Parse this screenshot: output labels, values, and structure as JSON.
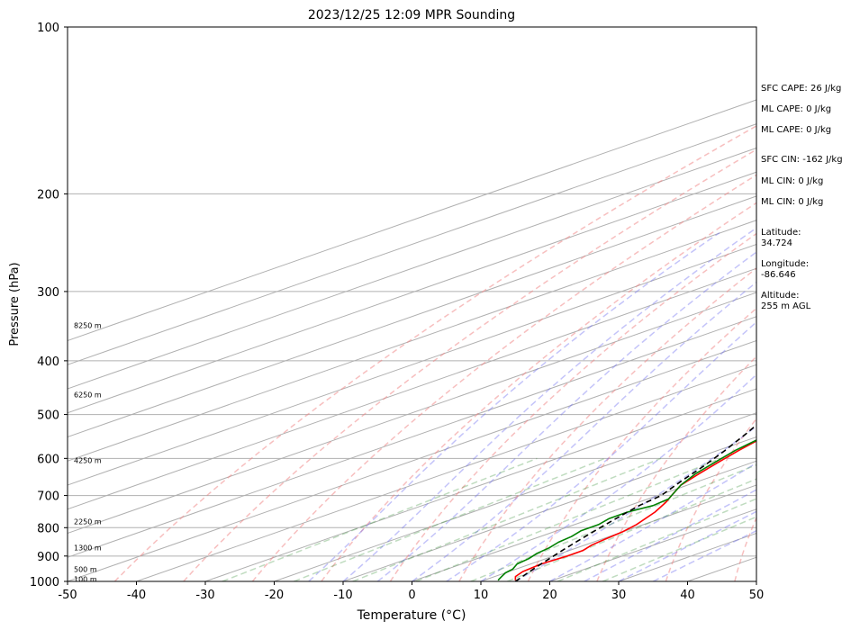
{
  "chart_data": {
    "type": "line",
    "title": "2023/12/25 12:09 MPR Sounding",
    "xlabel": "Temperature (°C)",
    "ylabel": "Pressure (hPa)",
    "xlim": [
      -50,
      50
    ],
    "ylim": [
      1000,
      100
    ],
    "y_scale": "log",
    "x_ticks": [
      -50,
      -40,
      -30,
      -20,
      -10,
      0,
      10,
      20,
      30,
      40,
      50
    ],
    "y_ticks": [
      100,
      200,
      300,
      400,
      500,
      600,
      700,
      800,
      900,
      1000
    ],
    "grid": true,
    "height_labels": [
      {
        "label": "100 m",
        "p": 990
      },
      {
        "label": "500 m",
        "p": 950
      },
      {
        "label": "1300 m",
        "p": 870
      },
      {
        "label": "2250 m",
        "p": 780
      },
      {
        "label": "4250 m",
        "p": 605
      },
      {
        "label": "6250 m",
        "p": 460
      },
      {
        "label": "8250 m",
        "p": 345
      }
    ],
    "series": [
      {
        "key": "temperature",
        "color": "#ff0000",
        "points": [
          [
            14.5,
            995
          ],
          [
            13.0,
            980
          ],
          [
            12.0,
            960
          ],
          [
            11.5,
            930
          ],
          [
            12.0,
            900
          ],
          [
            12.0,
            880
          ],
          [
            11.0,
            860
          ],
          [
            10.5,
            840
          ],
          [
            10.0,
            815
          ],
          [
            9.0,
            790
          ],
          [
            6.5,
            750
          ],
          [
            4.0,
            720
          ],
          [
            2.0,
            700
          ],
          [
            -1.0,
            670
          ],
          [
            -3.0,
            640
          ],
          [
            -5.0,
            610
          ],
          [
            -7.0,
            580
          ],
          [
            -9.5,
            540
          ],
          [
            -12.0,
            500
          ],
          [
            -15.0,
            460
          ],
          [
            -18.5,
            420
          ],
          [
            -22.0,
            390
          ],
          [
            -25.5,
            360
          ],
          [
            -29.5,
            335
          ],
          [
            -33.5,
            310
          ],
          [
            -38.0,
            290
          ],
          [
            -42.0,
            270
          ]
        ]
      },
      {
        "key": "dewpoint",
        "color": "#008000",
        "points": [
          [
            12.0,
            995
          ],
          [
            11.0,
            980
          ],
          [
            10.0,
            965
          ],
          [
            9.5,
            950
          ],
          [
            8.0,
            930
          ],
          [
            7.5,
            910
          ],
          [
            6.5,
            890
          ],
          [
            6.0,
            870
          ],
          [
            5.0,
            850
          ],
          [
            4.5,
            830
          ],
          [
            3.5,
            810
          ],
          [
            3.5,
            790
          ],
          [
            2.5,
            770
          ],
          [
            2.5,
            750
          ],
          [
            3.5,
            730
          ],
          [
            3.0,
            710
          ],
          [
            2.0,
            700
          ],
          [
            -1.0,
            670
          ],
          [
            -3.5,
            640
          ],
          [
            -5.5,
            610
          ],
          [
            -7.5,
            580
          ],
          [
            -9.5,
            540
          ],
          [
            -12.0,
            500
          ],
          [
            -15.0,
            460
          ],
          [
            -18.5,
            420
          ],
          [
            -22.0,
            390
          ],
          [
            -25.5,
            360
          ],
          [
            -28.5,
            340
          ],
          [
            -31.5,
            320
          ],
          [
            -38.0,
            300
          ],
          [
            -43.0,
            290
          ],
          [
            -45.5,
            280
          ],
          [
            -49.5,
            270
          ]
        ]
      },
      {
        "key": "parcel",
        "color": "#000000",
        "dash": "6,4",
        "points": [
          [
            15.0,
            1000
          ],
          [
            13.5,
            970
          ],
          [
            12.0,
            940
          ],
          [
            10.5,
            910
          ],
          [
            9.0,
            880
          ],
          [
            7.5,
            850
          ],
          [
            6.0,
            820
          ],
          [
            4.5,
            790
          ],
          [
            3.0,
            760
          ],
          [
            1.5,
            730
          ],
          [
            0.5,
            700
          ],
          [
            -2.5,
            660
          ],
          [
            -5.5,
            620
          ],
          [
            -9.0,
            580
          ],
          [
            -13.0,
            540
          ],
          [
            -17.5,
            500
          ],
          [
            -22.0,
            460
          ],
          [
            -27.0,
            420
          ],
          [
            -32.0,
            380
          ],
          [
            -37.5,
            340
          ],
          [
            -43.5,
            300
          ],
          [
            -49.5,
            270
          ]
        ]
      }
    ],
    "skew_deg_per_log_unit": 100,
    "dry_adiabat_thetas_k": [
      230,
      240,
      250,
      260,
      270,
      280,
      290,
      300,
      310,
      320,
      330,
      340,
      350,
      360,
      370
    ],
    "moist_adiabat_start_c": [
      -15,
      -10,
      -5,
      0,
      5,
      10,
      15,
      20,
      25,
      30,
      35
    ],
    "mixing_ratios_gkg": [
      0.4,
      1,
      2,
      4,
      7,
      10,
      16,
      24
    ]
  },
  "indices": [
    {
      "text": "SFC CAPE: 26 J/kg",
      "y": 100
    },
    {
      "text": "ML CAPE: 0 J/kg",
      "y": 123
    },
    {
      "text": "ML CAPE: 0 J/kg",
      "y": 146
    },
    {
      "text": "SFC CIN: -162 J/kg",
      "y": 179
    },
    {
      "text": "ML CIN: 0 J/kg",
      "y": 203
    },
    {
      "text": "ML CIN: 0 J/kg",
      "y": 226
    }
  ],
  "location": {
    "latitude": "Latitude:\n34.724",
    "longitude": "Longitude:\n-86.646",
    "altitude": "Altitude:\n255 m AGL"
  }
}
